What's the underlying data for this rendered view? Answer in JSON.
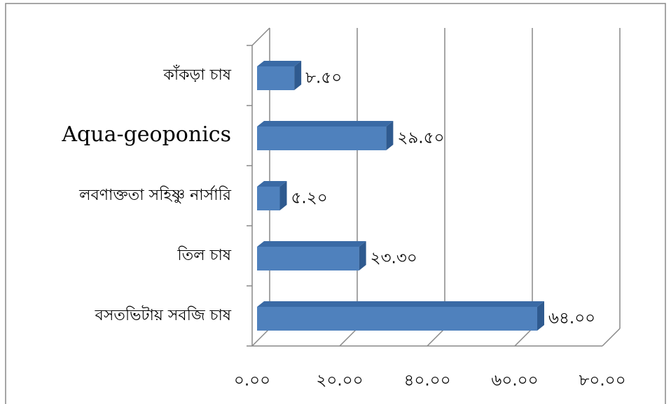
{
  "chart_data": {
    "type": "bar3d_horizontal",
    "categories": [
      "কাঁকড়া চাষ",
      "Aqua-geoponics",
      "লবণাক্ততা সহিষ্ণু নার্সারি",
      "তিল চাষ",
      "বসতভিটায় সবজি চাষ"
    ],
    "values": [
      8.5,
      29.5,
      5.2,
      23.3,
      64.0
    ],
    "value_labels": [
      "৮.৫০",
      "২৯.৫০",
      "৫.২০",
      "২৩.৩০",
      "৬৪.০০"
    ],
    "color": "#4f81bd",
    "xlim": [
      0,
      80
    ],
    "xticks": [
      {
        "value": 0,
        "label": "০.০০"
      },
      {
        "value": 20,
        "label": "২০.০০"
      },
      {
        "value": 40,
        "label": "৪০.০০"
      },
      {
        "value": 60,
        "label": "৬০.০০"
      },
      {
        "value": 80,
        "label": "৮০.০০"
      }
    ],
    "grid": true
  }
}
